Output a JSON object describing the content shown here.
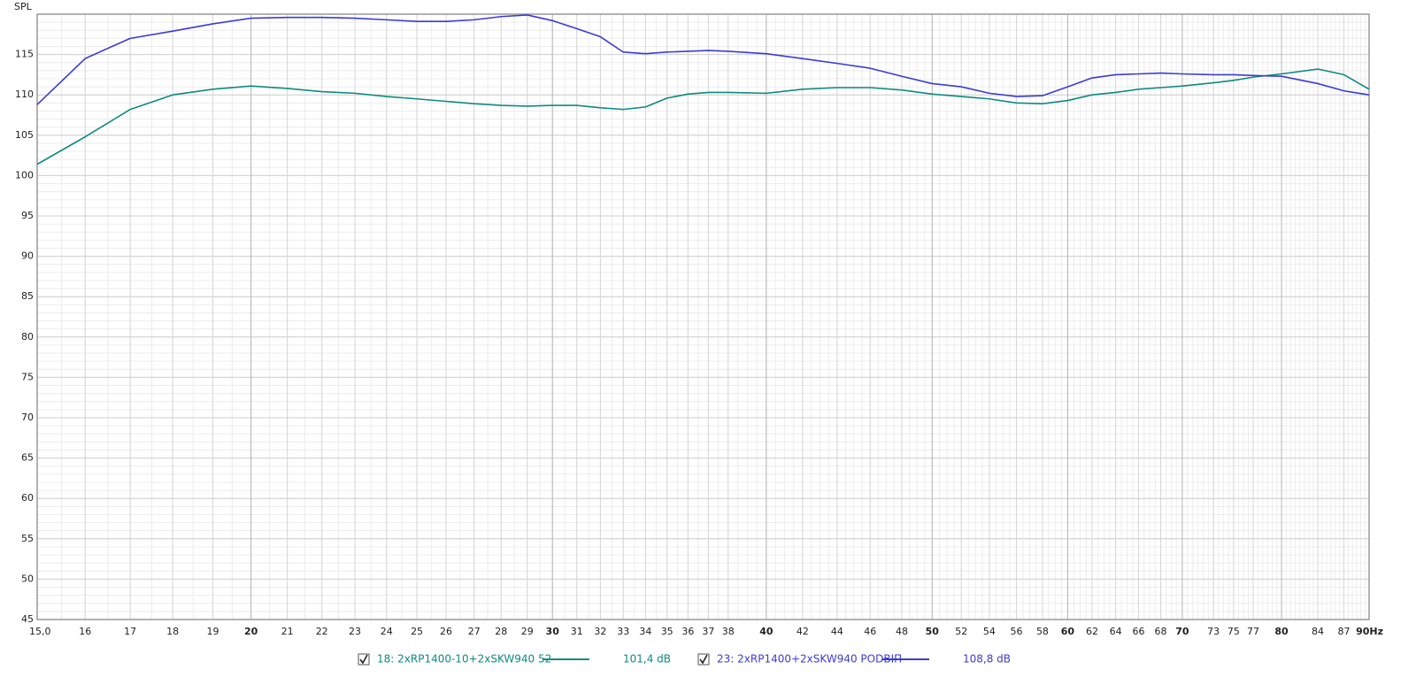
{
  "chart_data": {
    "type": "line",
    "y_label": "SPL",
    "log_x": true,
    "grid": true,
    "minor_grid": true,
    "xlim": [
      15,
      90
    ],
    "ylim": [
      45,
      120
    ],
    "xticks": [
      {
        "value": 15,
        "label": "15,0"
      },
      16,
      17,
      18,
      19,
      20,
      21,
      22,
      23,
      24,
      25,
      26,
      27,
      28,
      29,
      30,
      31,
      32,
      33,
      34,
      35,
      36,
      37,
      38,
      40,
      42,
      44,
      46,
      48,
      50,
      52,
      54,
      56,
      58,
      60,
      62,
      64,
      66,
      68,
      70,
      73,
      75,
      77,
      80,
      84,
      87,
      {
        "value": 90,
        "label": "90Hz"
      }
    ],
    "yticks": [
      45,
      50,
      55,
      60,
      65,
      70,
      75,
      80,
      85,
      90,
      95,
      100,
      105,
      110,
      115
    ],
    "x": [
      15,
      16,
      17,
      18,
      19,
      20,
      21,
      22,
      23,
      24,
      25,
      26,
      27,
      28,
      29,
      30,
      31,
      32,
      33,
      34,
      35,
      36,
      37,
      38,
      40,
      42,
      44,
      46,
      48,
      50,
      52,
      54,
      56,
      58,
      60,
      62,
      64,
      66,
      68,
      70,
      73,
      75,
      77,
      80,
      84,
      87,
      90
    ],
    "series": [
      {
        "name": "18: 2xRP1400-10+2xSKW940 52",
        "color": "#0f8a80",
        "readout": "101,4 dB",
        "values": [
          101.4,
          104.8,
          108.2,
          110.0,
          110.7,
          111.1,
          110.8,
          110.4,
          110.2,
          109.8,
          109.5,
          109.2,
          108.9,
          108.7,
          108.6,
          108.7,
          108.7,
          108.4,
          108.2,
          108.5,
          109.6,
          110.1,
          110.3,
          110.3,
          110.2,
          110.7,
          110.9,
          110.9,
          110.6,
          110.1,
          109.8,
          109.5,
          109.0,
          108.9,
          109.3,
          110.0,
          110.3,
          110.7,
          110.9,
          111.1,
          111.5,
          111.8,
          112.2,
          112.6,
          113.2,
          112.5,
          110.7
        ]
      },
      {
        "name": "23: 2xRP1400+2xSKW940 PODBIП",
        "color": "#3b3bd6",
        "readout": "108,8 dB",
        "values": [
          108.8,
          114.5,
          117.0,
          117.9,
          118.8,
          119.5,
          119.6,
          119.6,
          119.5,
          119.3,
          119.1,
          119.1,
          119.3,
          119.7,
          119.9,
          119.2,
          118.2,
          117.2,
          115.3,
          115.1,
          115.3,
          115.4,
          115.5,
          115.4,
          115.1,
          114.5,
          113.9,
          113.3,
          112.3,
          111.4,
          111.0,
          110.2,
          109.8,
          109.9,
          111.0,
          112.1,
          112.5,
          112.6,
          112.7,
          112.6,
          112.5,
          112.5,
          112.4,
          112.3,
          111.4,
          110.5,
          110.0
        ]
      }
    ]
  }
}
